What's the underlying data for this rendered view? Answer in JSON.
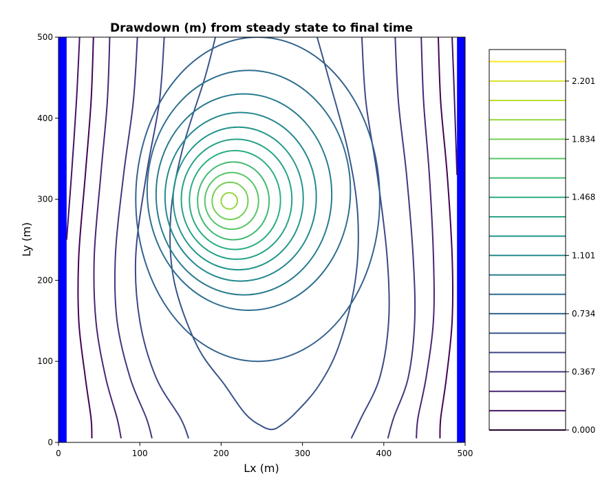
{
  "chart_data": {
    "type": "contour",
    "title": "Drawdown (m) from steady state to final time",
    "xlabel": "Lx (m)",
    "ylabel": "Ly (m)",
    "xlim": [
      0,
      500
    ],
    "ylim": [
      0,
      500
    ],
    "x_ticks": [
      "0",
      "100",
      "200",
      "300",
      "400",
      "500"
    ],
    "y_ticks": [
      "0",
      "100",
      "200",
      "300",
      "400",
      "500"
    ],
    "boundary_color": "#0000ff",
    "boundaries": [
      {
        "name": "left-constant-head",
        "x_range": [
          0,
          10
        ]
      },
      {
        "name": "right-constant-head",
        "x_range": [
          490,
          500
        ]
      }
    ],
    "peak": {
      "x": 210,
      "y": 298
    },
    "closed_contours": [
      {
        "cx": 210,
        "cy": 298,
        "rx": 10,
        "ry": 10
      },
      {
        "cx": 211,
        "cy": 298,
        "rx": 22,
        "ry": 23
      },
      {
        "cx": 213,
        "cy": 298,
        "rx": 33,
        "ry": 35
      },
      {
        "cx": 215,
        "cy": 298,
        "rx": 44,
        "ry": 48
      },
      {
        "cx": 217,
        "cy": 299,
        "rx": 56,
        "ry": 61
      },
      {
        "cx": 219,
        "cy": 300,
        "rx": 68,
        "ry": 74
      },
      {
        "cx": 221,
        "cy": 301,
        "rx": 80,
        "ry": 88
      },
      {
        "cx": 224,
        "cy": 303,
        "rx": 93,
        "ry": 104
      },
      {
        "cx": 228,
        "cy": 306,
        "rx": 108,
        "ry": 124
      },
      {
        "cx": 234,
        "cy": 311,
        "rx": 125,
        "ry": 148
      },
      {
        "cx": 245,
        "cy": 300,
        "rx": 150,
        "ry": 200
      }
    ],
    "contour_lines": [
      {
        "level": 0.0,
        "points": [
          [
            43,
            500
          ],
          [
            40,
            420
          ],
          [
            33,
            330
          ],
          [
            25,
            230
          ],
          [
            25,
            150
          ],
          [
            33,
            80
          ],
          [
            40,
            30
          ],
          [
            41,
            5
          ]
        ]
      },
      {
        "level": 0.0,
        "points": [
          [
            467,
            500
          ],
          [
            470,
            420
          ],
          [
            478,
            330
          ],
          [
            484,
            230
          ],
          [
            484,
            150
          ],
          [
            477,
            80
          ],
          [
            470,
            30
          ],
          [
            469,
            5
          ]
        ]
      },
      {
        "level": 0.122,
        "points": [
          [
            26,
            500
          ],
          [
            22,
            420
          ],
          [
            16,
            330
          ],
          [
            10,
            250
          ]
        ]
      },
      {
        "level": 0.122,
        "points": [
          [
            484,
            500
          ],
          [
            487,
            420
          ],
          [
            490,
            330
          ]
        ]
      },
      {
        "level": 0.244,
        "points": [
          [
            63,
            500
          ],
          [
            60,
            420
          ],
          [
            52,
            330
          ],
          [
            44,
            230
          ],
          [
            46,
            150
          ],
          [
            58,
            80
          ],
          [
            72,
            30
          ],
          [
            77,
            5
          ]
        ]
      },
      {
        "level": 0.244,
        "points": [
          [
            446,
            500
          ],
          [
            449,
            420
          ],
          [
            456,
            330
          ],
          [
            461,
            230
          ],
          [
            461,
            150
          ],
          [
            452,
            80
          ],
          [
            442,
            30
          ],
          [
            440,
            5
          ]
        ]
      },
      {
        "level": 0.367,
        "points": [
          [
            97,
            500
          ],
          [
            92,
            420
          ],
          [
            80,
            330
          ],
          [
            70,
            230
          ],
          [
            72,
            150
          ],
          [
            88,
            80
          ],
          [
            108,
            30
          ],
          [
            115,
            5
          ]
        ]
      },
      {
        "level": 0.367,
        "points": [
          [
            414,
            500
          ],
          [
            418,
            420
          ],
          [
            428,
            330
          ],
          [
            436,
            230
          ],
          [
            438,
            150
          ],
          [
            430,
            80
          ],
          [
            412,
            30
          ],
          [
            405,
            5
          ]
        ]
      },
      {
        "level": 0.489,
        "points": [
          [
            130,
            500
          ],
          [
            124,
            420
          ],
          [
            108,
            330
          ],
          [
            95,
            230
          ],
          [
            100,
            150
          ],
          [
            120,
            80
          ],
          [
            150,
            30
          ],
          [
            160,
            5
          ]
        ]
      },
      {
        "level": 0.489,
        "points": [
          [
            373,
            500
          ],
          [
            378,
            420
          ],
          [
            392,
            330
          ],
          [
            404,
            230
          ],
          [
            406,
            150
          ],
          [
            395,
            80
          ],
          [
            372,
            30
          ],
          [
            360,
            5
          ]
        ]
      },
      {
        "level": 0.611,
        "points": [
          [
            193,
            500
          ],
          [
            180,
            450
          ],
          [
            152,
            360
          ],
          [
            138,
            280
          ],
          [
            142,
            200
          ],
          [
            170,
            120
          ],
          [
            205,
            70
          ],
          [
            230,
            35
          ],
          [
            250,
            20
          ],
          [
            262,
            16
          ],
          [
            272,
            20
          ],
          [
            290,
            35
          ],
          [
            320,
            70
          ],
          [
            345,
            120
          ],
          [
            365,
            200
          ],
          [
            368,
            280
          ],
          [
            356,
            360
          ],
          [
            332,
            450
          ],
          [
            318,
            500
          ]
        ]
      }
    ],
    "colorbar": {
      "ticks": [
        "0.000",
        "0.367",
        "0.734",
        "1.101",
        "1.468",
        "1.834",
        "2.201"
      ],
      "tick_values": [
        0.0,
        0.367,
        0.734,
        1.101,
        1.468,
        1.834,
        2.201
      ],
      "levels": [
        0.0,
        0.122,
        0.244,
        0.367,
        0.489,
        0.611,
        0.734,
        0.856,
        0.978,
        1.101,
        1.223,
        1.345,
        1.468,
        1.59,
        1.712,
        1.834,
        1.957,
        2.079,
        2.201,
        2.324
      ],
      "range": [
        0,
        2.4
      ],
      "colormap": "viridis"
    }
  }
}
